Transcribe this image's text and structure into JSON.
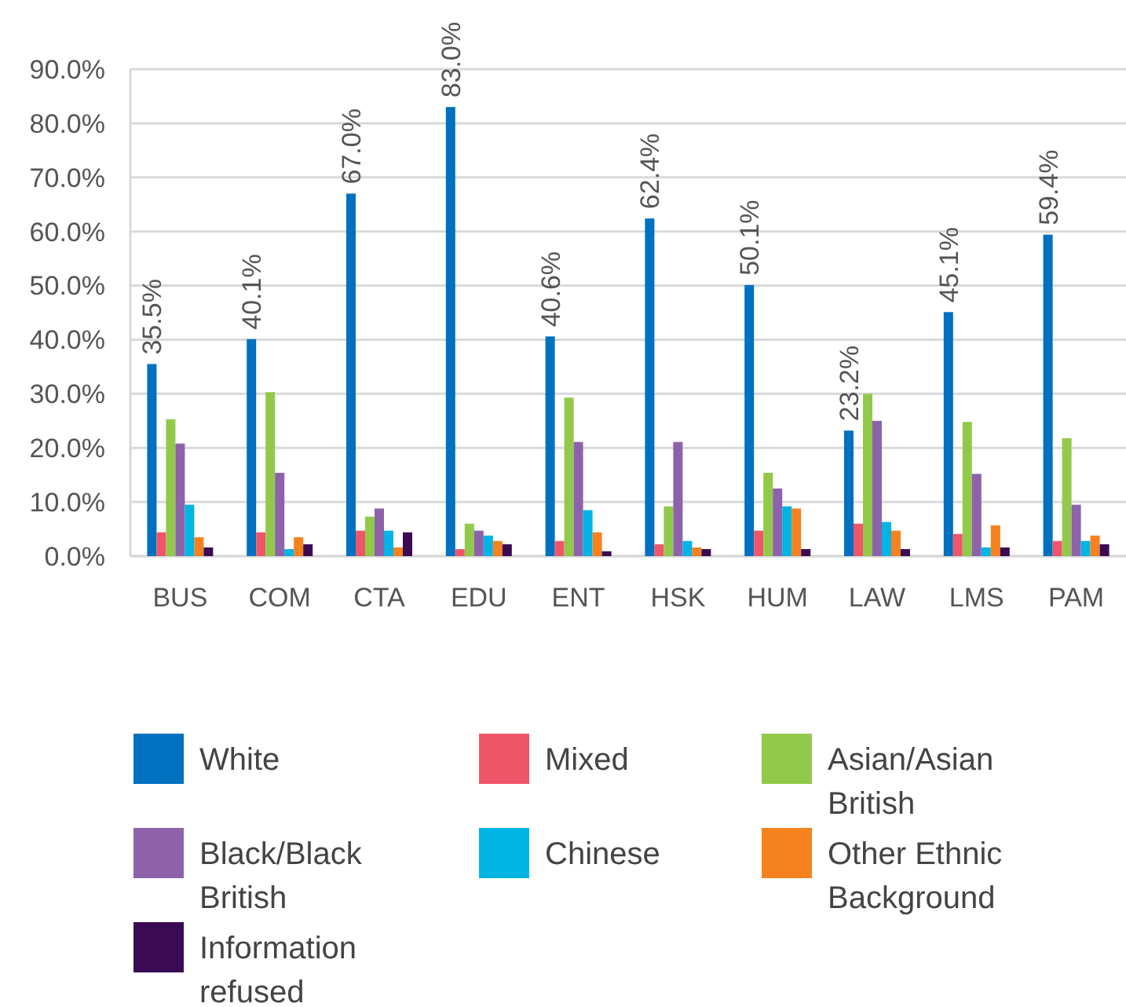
{
  "chart_data": {
    "type": "bar",
    "categories": [
      "BUS",
      "COM",
      "CTA",
      "EDU",
      "ENT",
      "HSK",
      "HUM",
      "LAW",
      "LMS",
      "PAM"
    ],
    "series": [
      {
        "name": "White",
        "color": "#0070c0",
        "values": [
          35.5,
          40.1,
          67.0,
          83.0,
          40.6,
          62.4,
          50.1,
          23.2,
          45.1,
          59.4
        ],
        "value_labels": [
          "35.5%",
          "40.1%",
          "67.0%",
          "83.0%",
          "40.6%",
          "62.4%",
          "50.1%",
          "23.2%",
          "45.1%",
          "59.4%"
        ]
      },
      {
        "name": "Mixed",
        "color": "#f0566a",
        "values": [
          4.4,
          4.4,
          4.7,
          1.3,
          2.8,
          2.2,
          4.7,
          6.0,
          4.1,
          2.8
        ]
      },
      {
        "name": "Asian/Asian British",
        "color": "#92c94a",
        "values": [
          25.3,
          30.3,
          7.3,
          6.0,
          29.3,
          9.2,
          15.4,
          30.0,
          24.8,
          21.8
        ]
      },
      {
        "name": "Black/Black British",
        "color": "#8e62ab",
        "values": [
          20.8,
          15.4,
          8.8,
          4.7,
          21.1,
          21.1,
          12.5,
          25.0,
          15.2,
          9.5
        ]
      },
      {
        "name": "Chinese",
        "color": "#00b4e4",
        "values": [
          9.5,
          1.3,
          4.7,
          3.8,
          8.5,
          2.8,
          9.2,
          6.3,
          1.6,
          2.8
        ]
      },
      {
        "name": "Other Ethnic Background",
        "color": "#f5821f",
        "values": [
          3.5,
          3.5,
          1.6,
          2.8,
          4.4,
          1.6,
          8.8,
          4.7,
          5.7,
          3.8
        ]
      },
      {
        "name": "Information refused",
        "color": "#3b0a54",
        "values": [
          1.6,
          2.2,
          4.4,
          2.2,
          0.9,
          1.3,
          1.3,
          1.3,
          1.6,
          2.2
        ]
      }
    ],
    "ylim": [
      0,
      90
    ],
    "yticks": [
      {
        "value": 0,
        "label": "0.0%"
      },
      {
        "value": 10,
        "label": "10.0%"
      },
      {
        "value": 20,
        "label": "20.0%"
      },
      {
        "value": 30,
        "label": "30.0%"
      },
      {
        "value": 40,
        "label": "40.0%"
      },
      {
        "value": 50,
        "label": "50.0%"
      },
      {
        "value": 60,
        "label": "60.0%"
      },
      {
        "value": 70,
        "label": "70.0%"
      },
      {
        "value": 80,
        "label": "80.0%"
      },
      {
        "value": 90,
        "label": "90.0%"
      }
    ],
    "grid": "y",
    "legend": "bottom"
  }
}
